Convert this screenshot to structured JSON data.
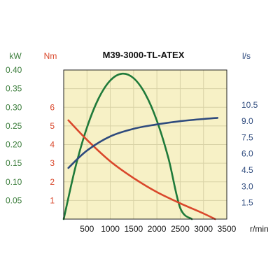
{
  "chart_data": {
    "type": "line",
    "title": "M39-3000-TL-ATEX",
    "x": {
      "unit": "r/min",
      "range": [
        0,
        3500
      ],
      "ticks": [
        500,
        1000,
        1500,
        2000,
        2500,
        3000,
        3500
      ],
      "tick_labels": [
        "500",
        "1000",
        "1500",
        "2000",
        "2500",
        "3000",
        "3500"
      ]
    },
    "axes": {
      "power": {
        "unit": "kW",
        "range": [
          0,
          0.4
        ],
        "ticks": [
          0.05,
          0.1,
          0.15,
          0.2,
          0.25,
          0.3,
          0.35,
          0.4
        ],
        "tick_labels": [
          "0.05",
          "0.10",
          "0.15",
          "0.20",
          "0.25",
          "0.30",
          "0.35",
          "0.40"
        ],
        "color": "#3b7d3b",
        "side": "left"
      },
      "torque": {
        "unit": "Nm",
        "range": [
          0,
          8
        ],
        "ticks": [
          1,
          2,
          3,
          4,
          5,
          6
        ],
        "tick_labels": [
          "1",
          "2",
          "3",
          "4",
          "5",
          "6"
        ],
        "color": "#d9472b",
        "side": "left"
      },
      "flow": {
        "unit": "l/s",
        "range": [
          0,
          13.7
        ],
        "ticks": [
          1.5,
          3.0,
          4.5,
          6.0,
          7.5,
          9.0,
          10.5
        ],
        "tick_labels": [
          "1.5",
          "3.0",
          "4.5",
          "6.0",
          "7.5",
          "9.0",
          "10.5"
        ],
        "color": "#2e4a7d",
        "side": "right"
      }
    },
    "series": [
      {
        "axis": "power",
        "color": "#1f7a3a",
        "x": [
          0,
          250,
          500,
          750,
          1000,
          1250,
          1500,
          1750,
          2000,
          2250,
          2500,
          2750,
          3000,
          3250
        ],
        "y": [
          0.0,
          0.138,
          0.246,
          0.324,
          0.372,
          0.39,
          0.378,
          0.336,
          0.264,
          0.162,
          0.03,
          0.0,
          0.0,
          0.0
        ]
      },
      {
        "axis": "torque",
        "color": "#d9472b",
        "x": [
          100,
          500,
          1000,
          1500,
          2000,
          2500,
          3000,
          3250
        ],
        "y": [
          5.3,
          4.25,
          3.1,
          2.2,
          1.45,
          0.85,
          0.3,
          0.0
        ]
      },
      {
        "axis": "flow",
        "color": "#2e4a7d",
        "x": [
          100,
          500,
          1000,
          1500,
          2000,
          2500,
          3000,
          3300
        ],
        "y": [
          4.7,
          6.3,
          7.6,
          8.3,
          8.7,
          9.0,
          9.2,
          9.3
        ]
      }
    ],
    "plot_background": "#f7f1c6",
    "grid": true,
    "legend": "none"
  }
}
